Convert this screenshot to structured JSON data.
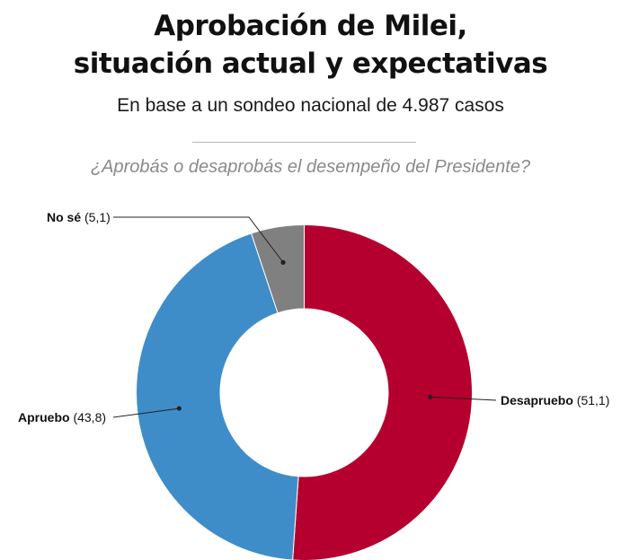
{
  "header": {
    "title_line1": "Aprobación de Milei,",
    "title_line2": "situación actual y expectativas",
    "subtitle": "En base a un sondeo nacional de 4.987 casos",
    "question": "¿Aprobás o desaprobás el desempeño del Presidente?"
  },
  "chart_data": {
    "type": "pie",
    "donut": true,
    "title": "¿Aprobás o desaprobás el desempeño del Presidente?",
    "slices": [
      {
        "label": "Desapruebo",
        "value": 51.1,
        "value_text": "(51,1)",
        "color": "#b5002f"
      },
      {
        "label": "Apruebo",
        "value": 43.8,
        "value_text": "(43,8)",
        "color": "#3f8dc8"
      },
      {
        "label": "No sé",
        "value": 5.1,
        "value_text": "(5,1)",
        "color": "#808080"
      }
    ],
    "start_angle": "12 o'clock",
    "direction": "clockwise",
    "labels": "outside with leader lines",
    "legend": "none"
  }
}
